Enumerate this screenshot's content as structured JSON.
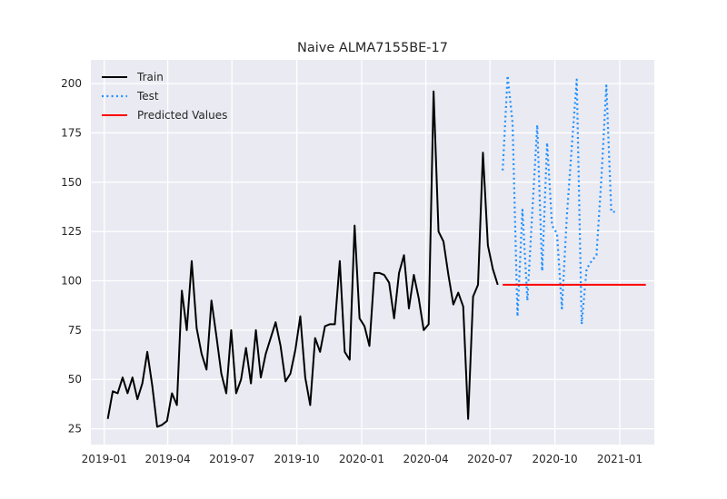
{
  "chart_data": {
    "type": "line",
    "title": "Naive ALMA7155BE-17",
    "xlabel": "",
    "ylabel": "",
    "x_axis": "date",
    "xlim": [
      "2018-12-13",
      "2021-02-19"
    ],
    "ylim": [
      17,
      212
    ],
    "grid": true,
    "legend_position": "top-left",
    "x_ticks": [
      "2019-01",
      "2019-04",
      "2019-07",
      "2019-10",
      "2020-01",
      "2020-04",
      "2020-07",
      "2020-10",
      "2021-01"
    ],
    "x_tick_dates": [
      "2019-01-01",
      "2019-04-01",
      "2019-07-01",
      "2019-10-01",
      "2020-01-01",
      "2020-04-01",
      "2020-07-01",
      "2020-10-01",
      "2021-01-01"
    ],
    "y_ticks": [
      25,
      50,
      75,
      100,
      125,
      150,
      175,
      200
    ],
    "series": [
      {
        "name": "Train",
        "color": "#000000",
        "style": "solid",
        "x": [
          "2019-01-06",
          "2019-01-13",
          "2019-01-20",
          "2019-01-27",
          "2019-02-03",
          "2019-02-10",
          "2019-02-17",
          "2019-02-24",
          "2019-03-03",
          "2019-03-10",
          "2019-03-17",
          "2019-03-24",
          "2019-03-31",
          "2019-04-07",
          "2019-04-14",
          "2019-04-21",
          "2019-04-28",
          "2019-05-05",
          "2019-05-12",
          "2019-05-19",
          "2019-05-26",
          "2019-06-02",
          "2019-06-09",
          "2019-06-16",
          "2019-06-23",
          "2019-06-30",
          "2019-07-07",
          "2019-07-14",
          "2019-07-21",
          "2019-07-28",
          "2019-08-04",
          "2019-08-11",
          "2019-08-18",
          "2019-08-25",
          "2019-09-01",
          "2019-09-08",
          "2019-09-15",
          "2019-09-22",
          "2019-09-29",
          "2019-10-06",
          "2019-10-13",
          "2019-10-20",
          "2019-10-27",
          "2019-11-03",
          "2019-11-10",
          "2019-11-17",
          "2019-11-24",
          "2019-12-01",
          "2019-12-08",
          "2019-12-15",
          "2019-12-22",
          "2019-12-29",
          "2020-01-05",
          "2020-01-12",
          "2020-01-19",
          "2020-01-26",
          "2020-02-02",
          "2020-02-09",
          "2020-02-16",
          "2020-02-23",
          "2020-03-01",
          "2020-03-08",
          "2020-03-15",
          "2020-03-22",
          "2020-03-29",
          "2020-04-05",
          "2020-04-12",
          "2020-04-19",
          "2020-04-26",
          "2020-05-03",
          "2020-05-10",
          "2020-05-17",
          "2020-05-24",
          "2020-05-31",
          "2020-06-07",
          "2020-06-14",
          "2020-06-21",
          "2020-06-28",
          "2020-07-05",
          "2020-07-12"
        ],
        "values": [
          30,
          44,
          43,
          51,
          43,
          51,
          40,
          48,
          64,
          47,
          26,
          27,
          29,
          43,
          37,
          95,
          75,
          110,
          76,
          63,
          55,
          90,
          72,
          53,
          43,
          75,
          43,
          50,
          66,
          48,
          75,
          51,
          63,
          71,
          79,
          67,
          49,
          53,
          65,
          82,
          51,
          37,
          71,
          64,
          77,
          78,
          78,
          110,
          64,
          60,
          128,
          81,
          77,
          67,
          104,
          104,
          103,
          99,
          81,
          104,
          113,
          86,
          103,
          91,
          75,
          78,
          196,
          125,
          120,
          103,
          88,
          94,
          87,
          30,
          92,
          98,
          165,
          118,
          106,
          98
        ]
      },
      {
        "name": "Test",
        "color": "#1e90ff",
        "style": "dotted",
        "x": [
          "2020-07-19",
          "2020-07-26",
          "2020-08-02",
          "2020-08-09",
          "2020-08-16",
          "2020-08-23",
          "2020-08-30",
          "2020-09-06",
          "2020-09-13",
          "2020-09-20",
          "2020-09-27",
          "2020-10-04",
          "2020-10-11",
          "2020-10-18",
          "2020-10-25",
          "2020-11-01",
          "2020-11-08",
          "2020-11-15",
          "2020-11-22",
          "2020-11-29",
          "2020-12-06",
          "2020-12-13",
          "2020-12-20",
          "2020-12-27"
        ],
        "values": [
          156,
          204,
          180,
          82,
          136,
          90,
          135,
          179,
          105,
          170,
          128,
          124,
          86,
          133,
          168,
          202,
          78,
          106,
          110,
          113,
          152,
          199,
          135,
          135
        ]
      },
      {
        "name": "Predicted Values",
        "color": "#ff0000",
        "style": "solid",
        "x": [
          "2020-07-19",
          "2021-02-07"
        ],
        "values": [
          98,
          98
        ]
      }
    ]
  }
}
